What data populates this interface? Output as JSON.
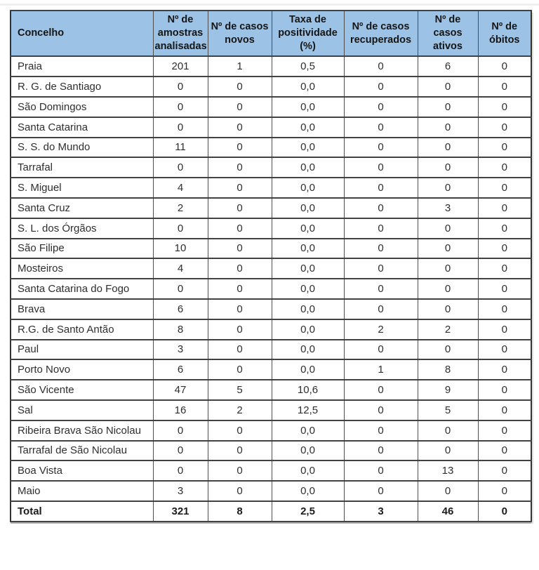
{
  "page": {
    "background": "#ffffff"
  },
  "table": {
    "header_bg": "#9cc3e6",
    "border_color": "#424242",
    "columns": [
      "Concelho",
      "Nº de amostras analisadas",
      "Nº de casos novos",
      "Taxa de positividade (%)",
      "Nº de casos recuperados",
      "Nº de casos ativos",
      "Nº de óbitos"
    ],
    "rows": [
      {
        "concelho": "Praia",
        "values": [
          "201",
          "1",
          "0,5",
          "0",
          "6",
          "0"
        ]
      },
      {
        "concelho": "R. G. de Santiago",
        "values": [
          "0",
          "0",
          "0,0",
          "0",
          "0",
          "0"
        ]
      },
      {
        "concelho": "São Domingos",
        "values": [
          "0",
          "0",
          "0,0",
          "0",
          "0",
          "0"
        ]
      },
      {
        "concelho": "Santa Catarina",
        "values": [
          "0",
          "0",
          "0,0",
          "0",
          "0",
          "0"
        ]
      },
      {
        "concelho": "S. S. do Mundo",
        "values": [
          "11",
          "0",
          "0,0",
          "0",
          "0",
          "0"
        ]
      },
      {
        "concelho": "Tarrafal",
        "values": [
          "0",
          "0",
          "0,0",
          "0",
          "0",
          "0"
        ]
      },
      {
        "concelho": "S. Miguel",
        "values": [
          "4",
          "0",
          "0,0",
          "0",
          "0",
          "0"
        ]
      },
      {
        "concelho": "Santa Cruz",
        "values": [
          "2",
          "0",
          "0,0",
          "0",
          "3",
          "0"
        ]
      },
      {
        "concelho": "S. L. dos Órgãos",
        "values": [
          "0",
          "0",
          "0,0",
          "0",
          "0",
          "0"
        ]
      },
      {
        "concelho": "São Filipe",
        "values": [
          "10",
          "0",
          "0,0",
          "0",
          "0",
          "0"
        ]
      },
      {
        "concelho": "Mosteiros",
        "values": [
          "4",
          "0",
          "0,0",
          "0",
          "0",
          "0"
        ]
      },
      {
        "concelho": "Santa Catarina do Fogo",
        "values": [
          "0",
          "0",
          "0,0",
          "0",
          "0",
          "0"
        ]
      },
      {
        "concelho": "Brava",
        "values": [
          "6",
          "0",
          "0,0",
          "0",
          "0",
          "0"
        ]
      },
      {
        "concelho": "R.G. de Santo Antão",
        "values": [
          "8",
          "0",
          "0,0",
          "2",
          "2",
          "0"
        ]
      },
      {
        "concelho": "Paul",
        "values": [
          "3",
          "0",
          "0,0",
          "0",
          "0",
          "0"
        ]
      },
      {
        "concelho": "Porto Novo",
        "values": [
          "6",
          "0",
          "0,0",
          "1",
          "8",
          "0"
        ]
      },
      {
        "concelho": "São Vicente",
        "values": [
          "47",
          "5",
          "10,6",
          "0",
          "9",
          "0"
        ]
      },
      {
        "concelho": "Sal",
        "values": [
          "16",
          "2",
          "12,5",
          "0",
          "5",
          "0"
        ]
      },
      {
        "concelho": "Ribeira Brava São Nicolau",
        "values": [
          "0",
          "0",
          "0,0",
          "0",
          "0",
          "0"
        ]
      },
      {
        "concelho": "Tarrafal de São Nicolau",
        "values": [
          "0",
          "0",
          "0,0",
          "0",
          "0",
          "0"
        ]
      },
      {
        "concelho": "Boa Vista",
        "values": [
          "0",
          "0",
          "0,0",
          "0",
          "13",
          "0"
        ]
      },
      {
        "concelho": "Maio",
        "values": [
          "3",
          "0",
          "0,0",
          "0",
          "0",
          "0"
        ]
      }
    ],
    "total": {
      "label": "Total",
      "values": [
        "321",
        "8",
        "2,5",
        "3",
        "46",
        "0"
      ]
    }
  },
  "chart_data": {
    "type": "table",
    "columns": [
      "Concelho",
      "Nº de amostras analisadas",
      "Nº de casos novos",
      "Taxa de positividade (%)",
      "Nº de casos recuperados",
      "Nº de casos ativos",
      "Nº de óbitos"
    ],
    "rows": [
      [
        "Praia",
        "201",
        "1",
        "0,5",
        "0",
        "6",
        "0"
      ],
      [
        "R. G. de Santiago",
        "0",
        "0",
        "0,0",
        "0",
        "0",
        "0"
      ],
      [
        "São Domingos",
        "0",
        "0",
        "0,0",
        "0",
        "0",
        "0"
      ],
      [
        "Santa Catarina",
        "0",
        "0",
        "0,0",
        "0",
        "0",
        "0"
      ],
      [
        "S. S. do Mundo",
        "11",
        "0",
        "0,0",
        "0",
        "0",
        "0"
      ],
      [
        "Tarrafal",
        "0",
        "0",
        "0,0",
        "0",
        "0",
        "0"
      ],
      [
        "S. Miguel",
        "4",
        "0",
        "0,0",
        "0",
        "0",
        "0"
      ],
      [
        "Santa Cruz",
        "2",
        "0",
        "0,0",
        "0",
        "3",
        "0"
      ],
      [
        "S. L. dos Órgãos",
        "0",
        "0",
        "0,0",
        "0",
        "0",
        "0"
      ],
      [
        "São Filipe",
        "10",
        "0",
        "0,0",
        "0",
        "0",
        "0"
      ],
      [
        "Mosteiros",
        "4",
        "0",
        "0,0",
        "0",
        "0",
        "0"
      ],
      [
        "Santa Catarina do Fogo",
        "0",
        "0",
        "0,0",
        "0",
        "0",
        "0"
      ],
      [
        "Brava",
        "6",
        "0",
        "0,0",
        "0",
        "0",
        "0"
      ],
      [
        "R.G. de Santo Antão",
        "8",
        "0",
        "0,0",
        "2",
        "2",
        "0"
      ],
      [
        "Paul",
        "3",
        "0",
        "0,0",
        "0",
        "0",
        "0"
      ],
      [
        "Porto Novo",
        "6",
        "0",
        "0,0",
        "1",
        "8",
        "0"
      ],
      [
        "São Vicente",
        "47",
        "5",
        "10,6",
        "0",
        "9",
        "0"
      ],
      [
        "Sal",
        "16",
        "2",
        "12,5",
        "0",
        "5",
        "0"
      ],
      [
        "Ribeira Brava São Nicolau",
        "0",
        "0",
        "0,0",
        "0",
        "0",
        "0"
      ],
      [
        "Tarrafal de São Nicolau",
        "0",
        "0",
        "0,0",
        "0",
        "0",
        "0"
      ],
      [
        "Boa Vista",
        "0",
        "0",
        "0,0",
        "0",
        "13",
        "0"
      ],
      [
        "Maio",
        "3",
        "0",
        "0,0",
        "0",
        "0",
        "0"
      ],
      [
        "Total",
        "321",
        "8",
        "2,5",
        "3",
        "46",
        "0"
      ]
    ]
  }
}
